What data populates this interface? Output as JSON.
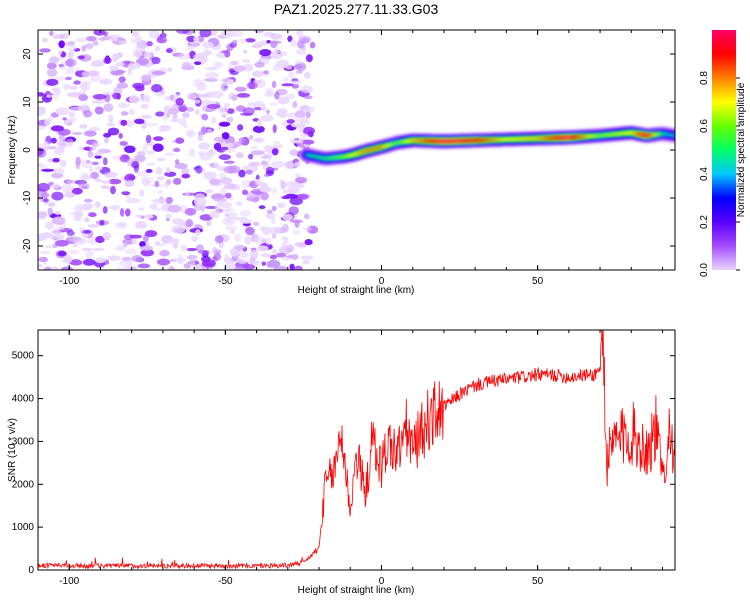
{
  "title": "PAZ1.2025.277.11.33.G03",
  "chart_data": [
    {
      "type": "heatmap",
      "name": "spectrogram",
      "xlabel": "Height of straight line (km)",
      "ylabel": "Frequency (Hz)",
      "xlim": [
        -110,
        94
      ],
      "ylim": [
        -25,
        25
      ],
      "xticks": [
        -100,
        -50,
        0,
        50
      ],
      "xtick_labels": [
        "-100",
        "-50",
        "0",
        "50"
      ],
      "yticks": [
        -20,
        -10,
        0,
        10,
        20
      ],
      "ytick_labels": [
        "-20",
        "-10",
        "0",
        "10",
        "20"
      ],
      "colorbar": {
        "label": "Normalized spectral amplitude",
        "range": [
          0,
          1
        ],
        "ticks": [
          0.0,
          0.2,
          0.4,
          0.6,
          0.8
        ],
        "tick_labels": [
          "0.0",
          "0.2",
          "0.4",
          "0.6",
          "0.8"
        ],
        "colormap": [
          "#e8d4ff",
          "#a64dff",
          "#5a00ff",
          "#0000ff",
          "#00c8ff",
          "#00ff66",
          "#66ff00",
          "#ffff00",
          "#ff8000",
          "#ff0000",
          "#ff0066"
        ]
      },
      "noise_region": {
        "x_range": [
          -110,
          -22
        ],
        "freq_range": [
          -25,
          25
        ],
        "amplitude": 0.1
      },
      "signal_track": {
        "x": [
          -24,
          -18,
          -12,
          -9,
          -5,
          0,
          5,
          10,
          20,
          30,
          40,
          50,
          60,
          70,
          80,
          85,
          90,
          94
        ],
        "freq": [
          -1.0,
          -1.8,
          -1.4,
          -1.0,
          -0.2,
          0.6,
          1.5,
          2.0,
          1.8,
          2.0,
          2.2,
          2.4,
          2.6,
          3.0,
          3.6,
          3.0,
          3.4,
          3.0
        ],
        "amplitude": [
          0.45,
          0.5,
          0.6,
          0.7,
          0.8,
          0.8,
          0.55,
          0.75,
          0.98,
          0.92,
          0.7,
          0.75,
          0.98,
          0.6,
          0.7,
          0.98,
          0.5,
          0.4
        ]
      }
    },
    {
      "type": "line",
      "name": "snr",
      "xlabel": "Height of straight line (km)",
      "ylabel": "SNR (10 * v/v)",
      "xlim": [
        -110,
        94
      ],
      "ylim": [
        0,
        5600
      ],
      "xticks": [
        -100,
        -50,
        0,
        50
      ],
      "xtick_labels": [
        "-100",
        "-50",
        "0",
        "50"
      ],
      "yticks": [
        0,
        1000,
        2000,
        3000,
        4000,
        5000
      ],
      "ytick_labels": [
        "0",
        "1000",
        "2000",
        "3000",
        "4000",
        "5000"
      ],
      "color": "#ff0000",
      "series": [
        {
          "name": "SNR",
          "x": [
            -110,
            -100,
            -90,
            -80,
            -70,
            -60,
            -50,
            -40,
            -30,
            -25,
            -20,
            -18,
            -15,
            -13,
            -10,
            -8,
            -5,
            -3,
            0,
            2,
            5,
            8,
            10,
            12,
            15,
            20,
            25,
            30,
            35,
            40,
            45,
            50,
            55,
            60,
            65,
            68,
            70,
            71,
            72,
            75,
            80,
            85,
            88,
            90,
            92,
            94
          ],
          "y": [
            110,
            100,
            95,
            100,
            95,
            100,
            100,
            95,
            110,
            170,
            500,
            2000,
            2300,
            3300,
            1400,
            2700,
            1800,
            3000,
            2400,
            3000,
            2700,
            3300,
            2800,
            3100,
            3500,
            3800,
            4100,
            4300,
            4400,
            4450,
            4500,
            4550,
            4550,
            4500,
            4550,
            4550,
            4700,
            5500,
            2500,
            3000,
            3200,
            2800,
            3300,
            2100,
            3300,
            2800
          ]
        }
      ]
    }
  ]
}
